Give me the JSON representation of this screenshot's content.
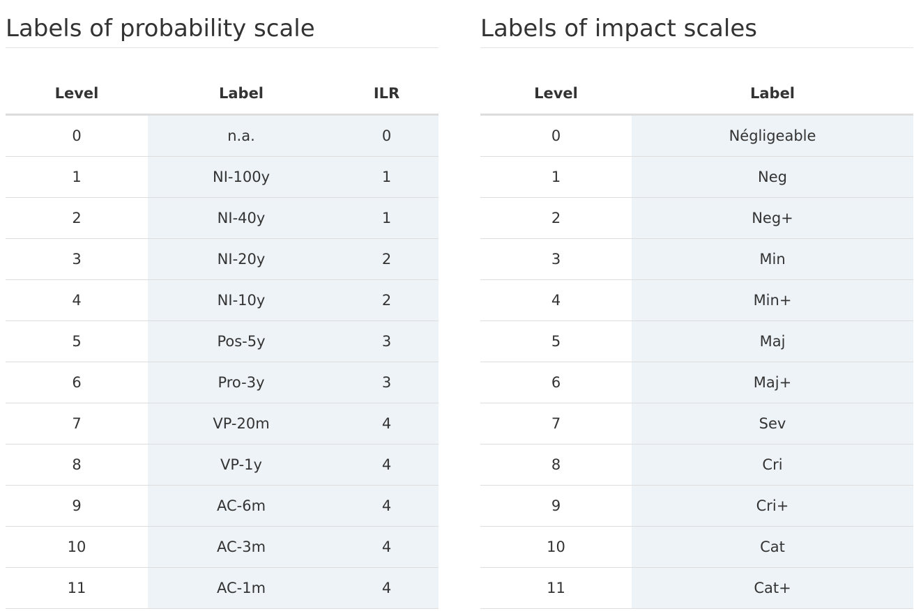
{
  "probability": {
    "title": "Labels of probability scale",
    "headers": {
      "level": "Level",
      "label": "Label",
      "ilr": "ILR"
    },
    "rows": [
      {
        "level": "0",
        "label": "n.a.",
        "ilr": "0"
      },
      {
        "level": "1",
        "label": "NI-100y",
        "ilr": "1"
      },
      {
        "level": "2",
        "label": "NI-40y",
        "ilr": "1"
      },
      {
        "level": "3",
        "label": "NI-20y",
        "ilr": "2"
      },
      {
        "level": "4",
        "label": "NI-10y",
        "ilr": "2"
      },
      {
        "level": "5",
        "label": "Pos-5y",
        "ilr": "3"
      },
      {
        "level": "6",
        "label": "Pro-3y",
        "ilr": "3"
      },
      {
        "level": "7",
        "label": "VP-20m",
        "ilr": "4"
      },
      {
        "level": "8",
        "label": "VP-1y",
        "ilr": "4"
      },
      {
        "level": "9",
        "label": "AC-6m",
        "ilr": "4"
      },
      {
        "level": "10",
        "label": "AC-3m",
        "ilr": "4"
      },
      {
        "level": "11",
        "label": "AC-1m",
        "ilr": "4"
      }
    ]
  },
  "impact": {
    "title": "Labels of impact scales",
    "headers": {
      "level": "Level",
      "label": "Label"
    },
    "rows": [
      {
        "level": "0",
        "label": "Négligeable"
      },
      {
        "level": "1",
        "label": "Neg"
      },
      {
        "level": "2",
        "label": "Neg+"
      },
      {
        "level": "3",
        "label": "Min"
      },
      {
        "level": "4",
        "label": "Min+"
      },
      {
        "level": "5",
        "label": "Maj"
      },
      {
        "level": "6",
        "label": "Maj+"
      },
      {
        "level": "7",
        "label": "Sev"
      },
      {
        "level": "8",
        "label": "Cri"
      },
      {
        "level": "9",
        "label": "Cri+"
      },
      {
        "level": "10",
        "label": "Cat"
      },
      {
        "level": "11",
        "label": "Cat+"
      }
    ]
  },
  "colors": {
    "shaded_column": "#eef3f7",
    "rule": "#dddddd",
    "text": "#333333"
  }
}
